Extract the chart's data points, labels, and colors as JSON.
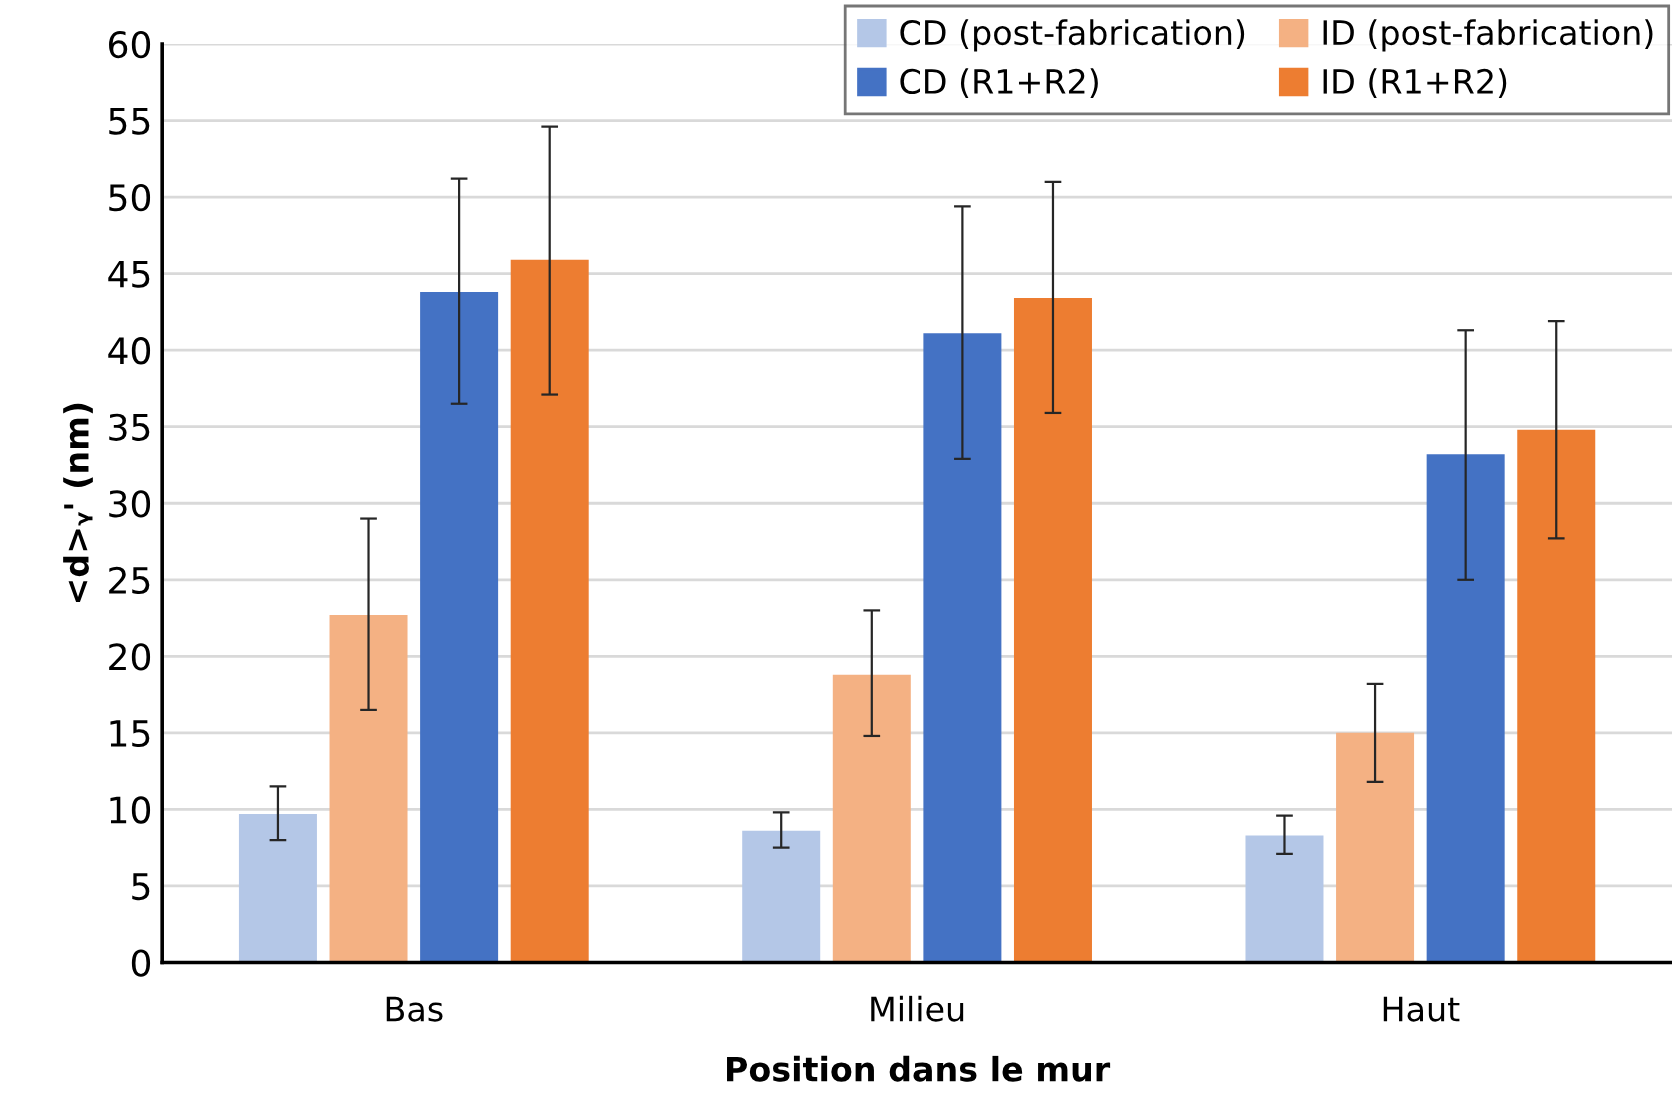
{
  "chart_data": {
    "type": "bar",
    "xlabel": "Position dans le mur",
    "ylabel": "<d>ᵧ' (nm)",
    "categories": [
      "Bas",
      "Milieu",
      "Haut"
    ],
    "series": [
      {
        "name": "CD (post-fabrication)",
        "color": "#b4c7e7",
        "values": [
          9.7,
          8.6,
          8.3
        ],
        "errors": [
          [
            8.0,
            11.5
          ],
          [
            7.5,
            9.8
          ],
          [
            7.1,
            9.6
          ]
        ]
      },
      {
        "name": "ID (post-fabrication)",
        "color": "#f4b183",
        "values": [
          22.7,
          18.8,
          15.0
        ],
        "errors": [
          [
            16.5,
            29.0
          ],
          [
            14.8,
            23.0
          ],
          [
            11.8,
            18.2
          ]
        ]
      },
      {
        "name": "CD (R1+R2)",
        "color": "#4472c4",
        "values": [
          43.8,
          41.1,
          33.2
        ],
        "errors": [
          [
            36.5,
            51.2
          ],
          [
            32.9,
            49.4
          ],
          [
            25.0,
            41.3
          ]
        ]
      },
      {
        "name": "ID (R1+R2)",
        "color": "#ed7d31",
        "values": [
          45.9,
          43.4,
          34.8
        ],
        "errors": [
          [
            37.1,
            54.6
          ],
          [
            35.9,
            51.0
          ],
          [
            27.7,
            41.9
          ]
        ]
      }
    ],
    "ylim": [
      0,
      60
    ],
    "yticks": [
      0,
      5,
      10,
      15,
      20,
      25,
      30,
      35,
      40,
      45,
      50,
      55,
      60
    ],
    "grid": "y",
    "legend": "top right"
  }
}
